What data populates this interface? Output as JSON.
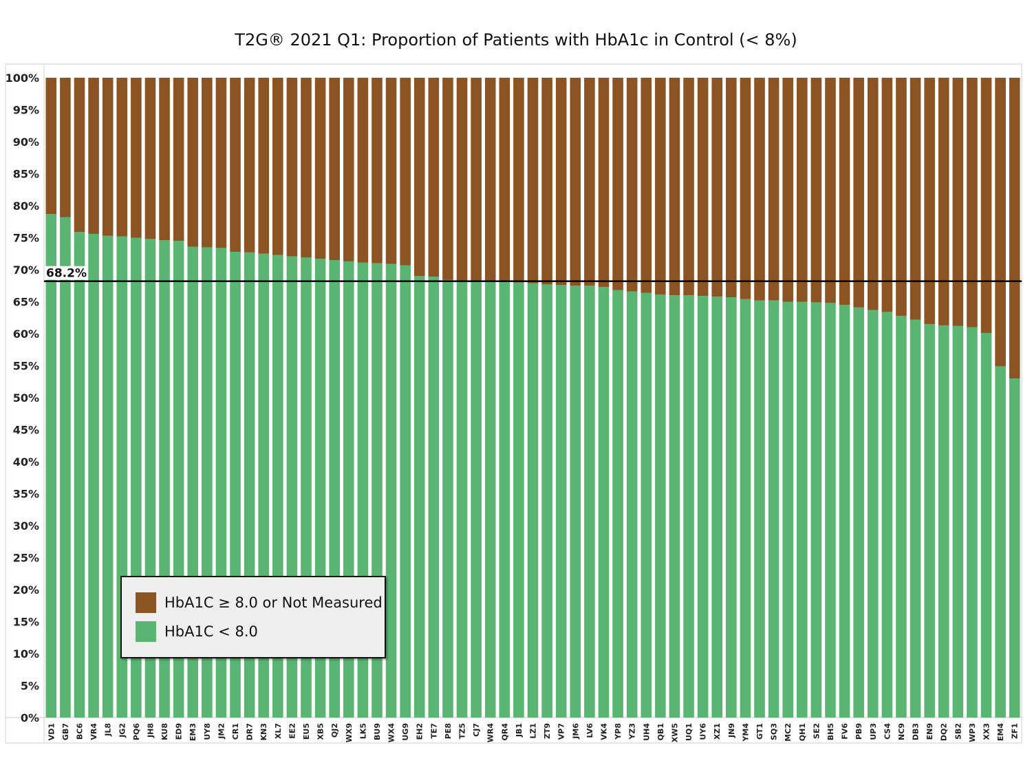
{
  "chart_data": {
    "type": "bar",
    "stacked": true,
    "title": "T2G® 2021 Q1: Proportion of Patients with HbA1c in Control (< 8%)",
    "xlabel": "",
    "ylabel": "",
    "ylim": [
      0,
      100
    ],
    "yticks": [
      "0%",
      "5%",
      "10%",
      "15%",
      "20%",
      "25%",
      "30%",
      "35%",
      "40%",
      "45%",
      "50%",
      "55%",
      "60%",
      "65%",
      "70%",
      "75%",
      "80%",
      "85%",
      "90%",
      "95%",
      "100%"
    ],
    "categories": [
      "VD1",
      "GB7",
      "BC6",
      "VR4",
      "JL8",
      "JG2",
      "PQ6",
      "JH8",
      "KU8",
      "ED9",
      "EM3",
      "UY8",
      "JM2",
      "CR1",
      "DR7",
      "KN3",
      "XL7",
      "EE2",
      "EU5",
      "XB5",
      "QJ2",
      "WX9",
      "LK5",
      "BU9",
      "WX4",
      "UG9",
      "EH2",
      "TE7",
      "PE8",
      "TZ5",
      "CJ7",
      "WR4",
      "QR4",
      "JB1",
      "LZ1",
      "ZT9",
      "VP7",
      "JM6",
      "LV6",
      "VK4",
      "YP8",
      "YZ3",
      "UH4",
      "QB1",
      "XW5",
      "UQ1",
      "UY6",
      "XZ1",
      "JN9",
      "YM4",
      "GT1",
      "SQ3",
      "MC2",
      "QH1",
      "SE2",
      "BH5",
      "FV6",
      "PB9",
      "UP3",
      "CS4",
      "NC9",
      "DB3",
      "EN9",
      "DQ2",
      "SB2",
      "WP3",
      "XX3",
      "EM4",
      "ZF1"
    ],
    "series": [
      {
        "name": "HbA1C < 8.0",
        "color": "#5ab572",
        "values": [
          78.7,
          78.2,
          75.9,
          75.6,
          75.3,
          75.2,
          75.0,
          74.8,
          74.6,
          74.5,
          73.6,
          73.5,
          73.4,
          72.8,
          72.7,
          72.5,
          72.3,
          72.1,
          71.9,
          71.7,
          71.5,
          71.3,
          71.1,
          71.0,
          70.9,
          70.7,
          69.0,
          68.9,
          68.4,
          68.3,
          68.2,
          68.2,
          68.1,
          68.0,
          67.9,
          67.7,
          67.6,
          67.5,
          67.5,
          67.3,
          66.8,
          66.6,
          66.4,
          66.1,
          66.0,
          66.0,
          65.9,
          65.8,
          65.7,
          65.4,
          65.2,
          65.2,
          65.0,
          65.0,
          64.9,
          64.8,
          64.5,
          64.1,
          63.7,
          63.4,
          62.8,
          62.2,
          61.5,
          61.3,
          61.2,
          61.0,
          60.1,
          54.9,
          53.0
        ]
      },
      {
        "name": "HbA1C ≥ 8.0 or Not Measured",
        "color": "#8c5323",
        "values": [
          21.3,
          21.8,
          24.1,
          24.4,
          24.7,
          24.8,
          25.0,
          25.2,
          25.4,
          25.5,
          26.4,
          26.5,
          26.6,
          27.2,
          27.3,
          27.5,
          27.7,
          27.9,
          28.1,
          28.3,
          28.5,
          28.7,
          28.9,
          29.0,
          29.1,
          29.3,
          31.0,
          31.1,
          31.6,
          31.7,
          31.8,
          31.8,
          31.9,
          32.0,
          32.1,
          32.3,
          32.4,
          32.5,
          32.5,
          32.7,
          33.2,
          33.4,
          33.6,
          33.9,
          34.0,
          34.0,
          34.1,
          34.2,
          34.3,
          34.6,
          34.8,
          34.8,
          35.0,
          35.0,
          35.1,
          35.2,
          35.5,
          35.9,
          36.3,
          36.6,
          37.2,
          37.8,
          38.5,
          38.7,
          38.8,
          39.0,
          39.9,
          45.1,
          47.0
        ]
      }
    ],
    "reference_line": {
      "value": 68.2,
      "label": "68.2%",
      "color": "#000000"
    },
    "legend": {
      "placement": "bottom-left",
      "items": [
        "HbA1C ≥ 8.0 or Not Measured",
        "HbA1C < 8.0"
      ]
    },
    "grid": false
  }
}
